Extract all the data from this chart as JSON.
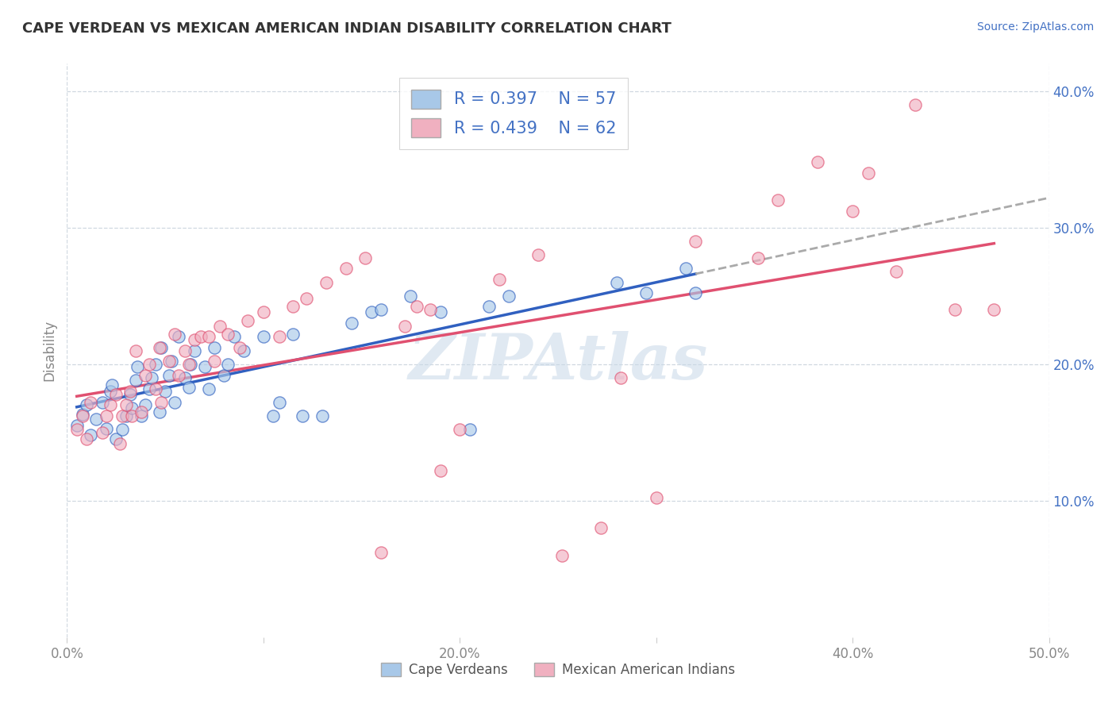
{
  "title": "CAPE VERDEAN VS MEXICAN AMERICAN INDIAN DISABILITY CORRELATION CHART",
  "source": "Source: ZipAtlas.com",
  "ylabel": "Disability",
  "xlim": [
    0.0,
    0.5
  ],
  "ylim": [
    0.0,
    0.42
  ],
  "xticks": [
    0.0,
    0.1,
    0.2,
    0.3,
    0.4,
    0.5
  ],
  "xticklabels": [
    "0.0%",
    "",
    "20.0%",
    "",
    "40.0%",
    "50.0%"
  ],
  "yticks": [
    0.0,
    0.1,
    0.2,
    0.3,
    0.4
  ],
  "right_yticklabels": [
    "",
    "10.0%",
    "20.0%",
    "30.0%",
    "40.0%"
  ],
  "blue_color": "#a8c8e8",
  "pink_color": "#f0b0c0",
  "line_blue": "#3060c0",
  "line_pink": "#e05070",
  "line_gray_dash": "#aaaaaa",
  "text_blue": "#4472c4",
  "grid_color": "#d0d8e0",
  "watermark_color": "#c8d8e8",
  "cape_verdean_x": [
    0.005,
    0.008,
    0.01,
    0.012,
    0.015,
    0.018,
    0.02,
    0.022,
    0.023,
    0.025,
    0.028,
    0.03,
    0.032,
    0.033,
    0.035,
    0.036,
    0.038,
    0.04,
    0.042,
    0.043,
    0.045,
    0.047,
    0.048,
    0.05,
    0.052,
    0.053,
    0.055,
    0.057,
    0.06,
    0.062,
    0.063,
    0.065,
    0.07,
    0.072,
    0.075,
    0.08,
    0.082,
    0.085,
    0.09,
    0.1,
    0.105,
    0.108,
    0.115,
    0.12,
    0.13,
    0.145,
    0.155,
    0.16,
    0.175,
    0.19,
    0.205,
    0.215,
    0.225,
    0.28,
    0.295,
    0.315,
    0.32
  ],
  "cape_verdean_y": [
    0.155,
    0.163,
    0.17,
    0.148,
    0.16,
    0.172,
    0.153,
    0.18,
    0.185,
    0.145,
    0.152,
    0.162,
    0.178,
    0.168,
    0.188,
    0.198,
    0.162,
    0.17,
    0.182,
    0.19,
    0.2,
    0.165,
    0.212,
    0.18,
    0.192,
    0.202,
    0.172,
    0.22,
    0.19,
    0.183,
    0.2,
    0.21,
    0.198,
    0.182,
    0.212,
    0.192,
    0.2,
    0.22,
    0.21,
    0.22,
    0.162,
    0.172,
    0.222,
    0.162,
    0.162,
    0.23,
    0.238,
    0.24,
    0.25,
    0.238,
    0.152,
    0.242,
    0.25,
    0.26,
    0.252,
    0.27,
    0.252
  ],
  "mexican_indian_x": [
    0.005,
    0.008,
    0.01,
    0.012,
    0.018,
    0.02,
    0.022,
    0.025,
    0.027,
    0.028,
    0.03,
    0.032,
    0.033,
    0.035,
    0.038,
    0.04,
    0.042,
    0.045,
    0.047,
    0.048,
    0.052,
    0.055,
    0.057,
    0.06,
    0.062,
    0.065,
    0.068,
    0.072,
    0.075,
    0.078,
    0.082,
    0.088,
    0.092,
    0.1,
    0.108,
    0.115,
    0.122,
    0.132,
    0.142,
    0.152,
    0.16,
    0.172,
    0.178,
    0.185,
    0.19,
    0.2,
    0.22,
    0.24,
    0.252,
    0.272,
    0.282,
    0.3,
    0.32,
    0.352,
    0.362,
    0.382,
    0.4,
    0.408,
    0.422,
    0.432,
    0.452,
    0.472
  ],
  "mexican_indian_y": [
    0.152,
    0.162,
    0.145,
    0.172,
    0.15,
    0.162,
    0.17,
    0.178,
    0.142,
    0.162,
    0.17,
    0.18,
    0.162,
    0.21,
    0.165,
    0.192,
    0.2,
    0.182,
    0.212,
    0.172,
    0.202,
    0.222,
    0.192,
    0.21,
    0.2,
    0.218,
    0.22,
    0.22,
    0.202,
    0.228,
    0.222,
    0.212,
    0.232,
    0.238,
    0.22,
    0.242,
    0.248,
    0.26,
    0.27,
    0.278,
    0.062,
    0.228,
    0.242,
    0.24,
    0.122,
    0.152,
    0.262,
    0.28,
    0.06,
    0.08,
    0.19,
    0.102,
    0.29,
    0.278,
    0.32,
    0.348,
    0.312,
    0.34,
    0.268,
    0.39,
    0.24,
    0.24
  ]
}
